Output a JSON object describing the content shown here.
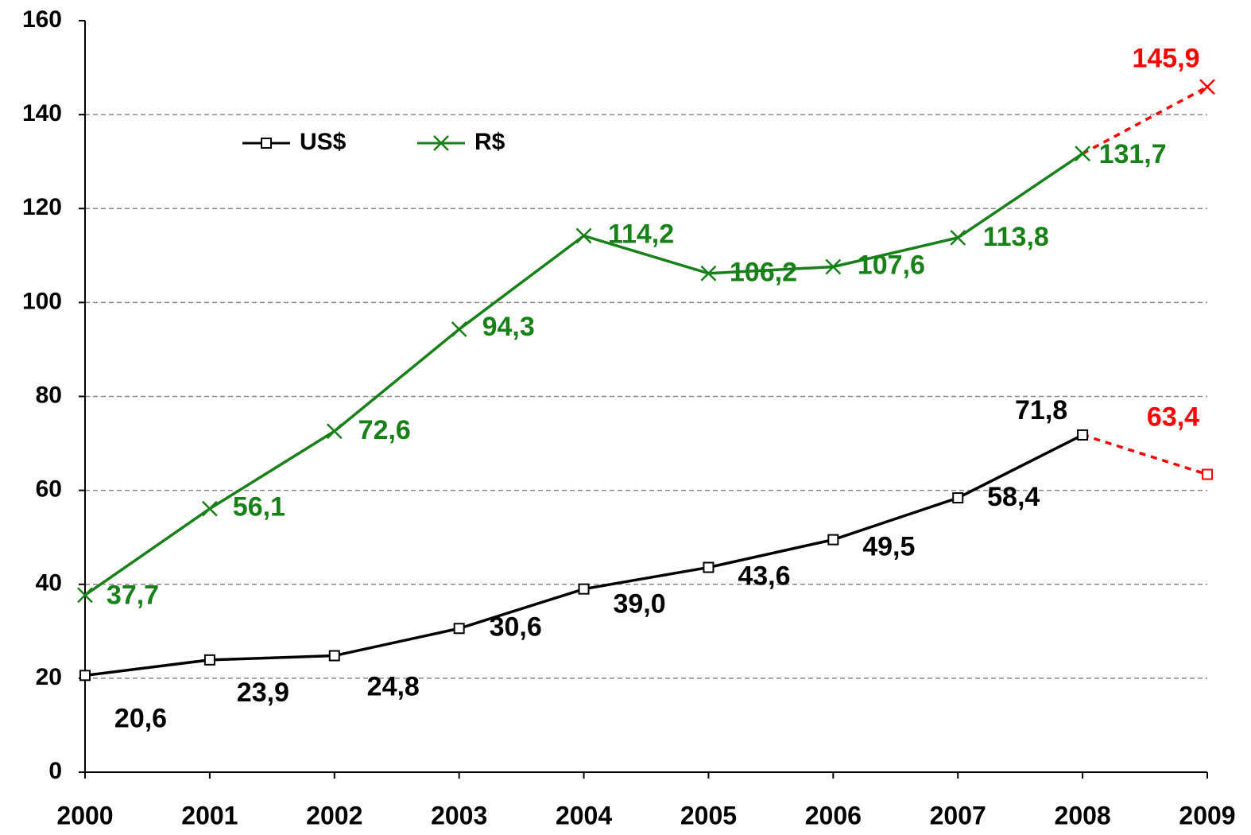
{
  "chart_data": {
    "type": "line",
    "categories": [
      "2000",
      "2001",
      "2002",
      "2003",
      "2004",
      "2005",
      "2006",
      "2007",
      "2008",
      "2009"
    ],
    "series": [
      {
        "name": "US$",
        "color": "#000000",
        "marker": "square",
        "values": [
          20.6,
          23.9,
          24.8,
          30.6,
          39.0,
          43.6,
          49.5,
          58.4,
          71.8,
          63.4
        ],
        "value_labels": [
          "20,6",
          "23,9",
          "24,8",
          "30,6",
          "39,0",
          "43,6",
          "49,5",
          "58,4",
          "71,8",
          "63,4"
        ]
      },
      {
        "name": "R$",
        "color": "#188018",
        "marker": "x",
        "values": [
          37.7,
          56.1,
          72.6,
          94.3,
          114.2,
          106.2,
          107.6,
          113.8,
          131.7,
          145.9
        ],
        "value_labels": [
          "37,7",
          "56,1",
          "72,6",
          "94,3",
          "114,2",
          "106,2",
          "107,6",
          "113,8",
          "131,7",
          "145,9"
        ]
      }
    ],
    "forecast": {
      "color": "#ff0000",
      "categories": [
        "2009"
      ]
    },
    "ylim": [
      0,
      160
    ],
    "yticks": [
      0,
      20,
      40,
      60,
      80,
      100,
      120,
      140,
      160
    ],
    "grid": true
  }
}
